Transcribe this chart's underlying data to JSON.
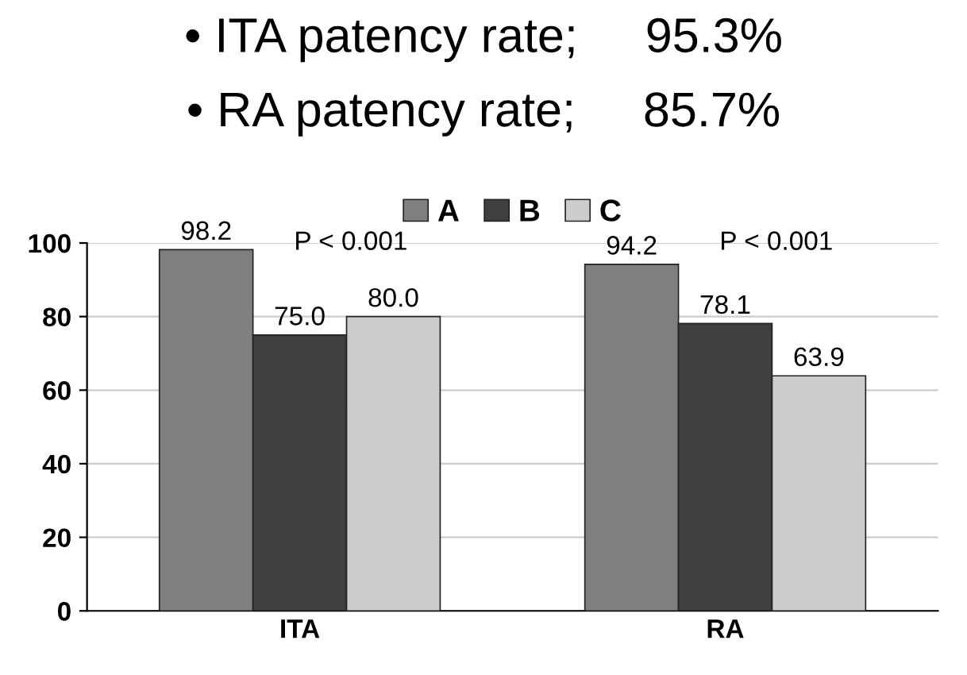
{
  "chart_data": {
    "type": "bar",
    "title": "• ITA patency rate;     95.3%",
    "subtitle": "• RA patency rate;     85.7%",
    "categories": [
      "ITA",
      "RA"
    ],
    "series": [
      {
        "name": "A",
        "color": "#7f7f7f",
        "values": [
          98.2,
          94.2
        ],
        "value_labels": [
          "98.2",
          "94.2"
        ]
      },
      {
        "name": "B",
        "color": "#3f3f3f",
        "values": [
          75.0,
          78.1
        ],
        "value_labels": [
          "75.0",
          "78.1"
        ]
      },
      {
        "name": "C",
        "color": "#cccccc",
        "values": [
          80.0,
          63.9
        ],
        "value_labels": [
          "80.0",
          "63.9"
        ]
      }
    ],
    "annotations": [
      "P < 0.001",
      "P < 0.001"
    ],
    "ylim": [
      0,
      100
    ],
    "yticks": [
      0,
      20,
      40,
      60,
      80,
      100
    ],
    "grid": "y",
    "legend": "top"
  }
}
